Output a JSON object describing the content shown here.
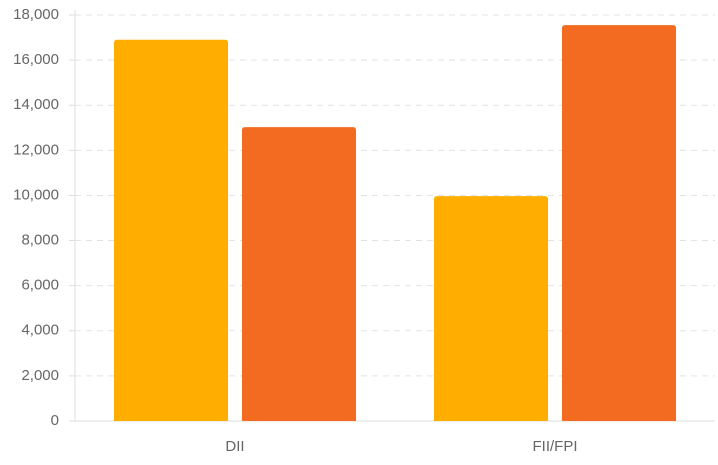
{
  "chart_data": {
    "type": "bar",
    "categories": [
      "DII",
      "FII/FPI"
    ],
    "series": [
      {
        "color": "#ffae00",
        "values": [
          16900,
          9970
        ]
      },
      {
        "color": "#f26b21",
        "values": [
          13030,
          17550
        ]
      }
    ],
    "ylim": [
      0,
      18000
    ],
    "yticks": [
      0,
      {
        "value": 2000,
        "label": "2,000"
      },
      {
        "value": 4000,
        "label": "4,000"
      },
      {
        "value": 6000,
        "label": "6,000"
      },
      {
        "value": 8000,
        "label": "8,000"
      },
      {
        "value": 10000,
        "label": "10,000"
      },
      {
        "value": 12000,
        "label": "12,000"
      },
      {
        "value": 14000,
        "label": "14,000"
      },
      {
        "value": 16000,
        "label": "16,000"
      },
      {
        "value": 18000,
        "label": "18,000"
      }
    ],
    "grid": true
  }
}
